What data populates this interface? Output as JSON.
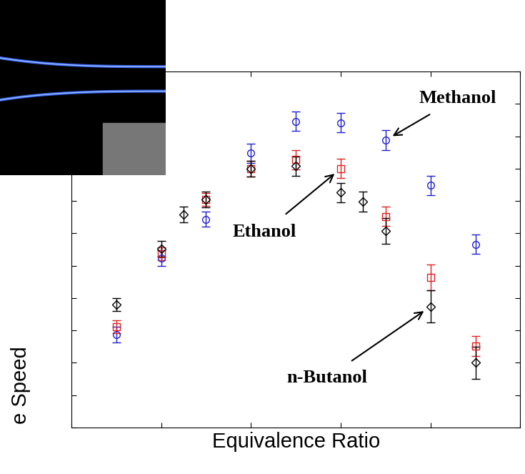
{
  "chart_data": {
    "type": "scatter",
    "x_label": "Equivalence Ratio",
    "y_label": "e Speed",
    "xlim": [
      0.7,
      1.2
    ],
    "xticks": [
      0.7,
      0.8,
      0.9,
      1.0,
      1.1,
      1.2
    ],
    "ylim": [
      10,
      65
    ],
    "yticks": [
      10,
      15,
      20,
      25,
      30,
      35,
      40,
      45,
      50,
      55,
      60,
      65
    ],
    "tick_labels": false,
    "grid": false,
    "series": [
      {
        "name": "Methanol",
        "color": "#1f1fd0",
        "marker": "circle",
        "x": [
          0.75,
          0.8,
          0.85,
          0.9,
          0.95,
          1.0,
          1.05,
          1.1,
          1.15
        ],
        "values": [
          24.4,
          36.2,
          42.2,
          52.4,
          57.3,
          57.1,
          54.4,
          47.4,
          38.3
        ],
        "error": [
          1.2,
          1.2,
          1.2,
          1.5,
          1.5,
          1.5,
          1.5,
          1.5,
          1.5
        ]
      },
      {
        "name": "Ethanol",
        "color": "#e02020",
        "marker": "square",
        "x": [
          0.75,
          0.8,
          0.85,
          0.9,
          0.95,
          1.0,
          1.05,
          1.1,
          1.15
        ],
        "values": [
          25.6,
          36.8,
          45.2,
          50.0,
          51.4,
          50.0,
          42.6,
          33.2,
          22.6
        ],
        "error": [
          1.0,
          1.0,
          1.0,
          1.2,
          1.5,
          1.5,
          1.5,
          2.0,
          1.5
        ]
      },
      {
        "name": "n-Butanol",
        "color": "#000000",
        "marker": "diamond",
        "x": [
          0.75,
          0.8,
          0.825,
          0.85,
          0.9,
          0.95,
          1.0,
          1.025,
          1.05,
          1.1,
          1.15
        ],
        "values": [
          29.0,
          37.6,
          42.9,
          45.2,
          50.0,
          50.4,
          46.3,
          44.9,
          40.4,
          28.7,
          20.0
        ],
        "error": [
          1.0,
          1.2,
          1.2,
          1.2,
          1.2,
          1.5,
          1.5,
          1.5,
          2.0,
          2.5,
          2.5
        ]
      }
    ]
  }
}
